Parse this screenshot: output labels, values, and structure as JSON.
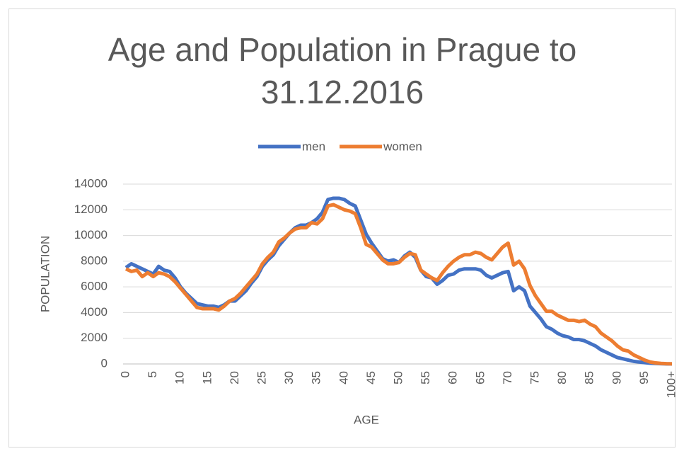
{
  "chart_data": {
    "type": "line",
    "title": "Age and Population in Prague to 31.12.2016",
    "x_label": "AGE",
    "y_label": "POPULATION",
    "legend": "top",
    "grid": true,
    "categories": [
      "0",
      null,
      null,
      null,
      null,
      "5",
      null,
      null,
      null,
      null,
      "10",
      null,
      null,
      null,
      null,
      "15",
      null,
      null,
      null,
      null,
      "20",
      null,
      null,
      null,
      null,
      "25",
      null,
      null,
      null,
      null,
      "30",
      null,
      null,
      null,
      null,
      "35",
      null,
      null,
      null,
      null,
      "40",
      null,
      null,
      null,
      null,
      "45",
      null,
      null,
      null,
      null,
      "50",
      null,
      null,
      null,
      null,
      "55",
      null,
      null,
      null,
      null,
      "60",
      null,
      null,
      null,
      null,
      "65",
      null,
      null,
      null,
      null,
      "70",
      null,
      null,
      null,
      null,
      "75",
      null,
      null,
      null,
      null,
      "80",
      null,
      null,
      null,
      null,
      "85",
      null,
      null,
      null,
      null,
      "90",
      null,
      null,
      null,
      null,
      "95",
      null,
      null,
      null,
      null,
      "100+"
    ],
    "ylim": [
      0,
      14000
    ],
    "yticks": [
      0,
      2000,
      4000,
      6000,
      8000,
      10000,
      12000,
      14000
    ],
    "series": [
      {
        "name": "men",
        "color": "#4472c4",
        "values": [
          7500,
          7800,
          7600,
          7400,
          7200,
          7000,
          7600,
          7300,
          7200,
          6700,
          6000,
          5500,
          5100,
          4700,
          4600,
          4500,
          4500,
          4400,
          4600,
          4900,
          4900,
          5300,
          5700,
          6300,
          6800,
          7600,
          8100,
          8500,
          9200,
          9700,
          10200,
          10600,
          10800,
          10800,
          11000,
          11300,
          11800,
          12800,
          12900,
          12900,
          12800,
          12500,
          12300,
          11200,
          10100,
          9400,
          8800,
          8200,
          8000,
          8100,
          7900,
          8400,
          8700,
          8300,
          7300,
          6800,
          6700,
          6200,
          6500,
          6900,
          7000,
          7300,
          7400,
          7400,
          7400,
          7300,
          6900,
          6700,
          6900,
          7100,
          7200,
          5700,
          6000,
          5700,
          4500,
          4000,
          3500,
          2900,
          2700,
          2400,
          2200,
          2100,
          1900,
          1900,
          1800,
          1600,
          1400,
          1100,
          900,
          700,
          500,
          400,
          300,
          200,
          150,
          100,
          60,
          40,
          20,
          10,
          10
        ]
      },
      {
        "name": "women",
        "color": "#ed7d31",
        "values": [
          7400,
          7200,
          7300,
          6800,
          7100,
          6800,
          7100,
          7000,
          6800,
          6400,
          5900,
          5400,
          4900,
          4400,
          4300,
          4300,
          4300,
          4200,
          4500,
          4900,
          5100,
          5500,
          6000,
          6500,
          7000,
          7800,
          8300,
          8700,
          9500,
          9800,
          10200,
          10500,
          10600,
          10600,
          11000,
          10900,
          11300,
          12300,
          12400,
          12200,
          12000,
          11900,
          11700,
          10600,
          9300,
          9100,
          8600,
          8100,
          7800,
          7800,
          7900,
          8300,
          8600,
          8500,
          7300,
          7000,
          6700,
          6500,
          7100,
          7600,
          8000,
          8300,
          8500,
          8500,
          8700,
          8600,
          8300,
          8100,
          8600,
          9100,
          9400,
          7700,
          8000,
          7400,
          6100,
          5300,
          4700,
          4100,
          4100,
          3800,
          3600,
          3400,
          3400,
          3300,
          3400,
          3100,
          2900,
          2400,
          2100,
          1800,
          1400,
          1100,
          1000,
          700,
          500,
          300,
          150,
          80,
          40,
          20,
          10
        ]
      }
    ]
  }
}
